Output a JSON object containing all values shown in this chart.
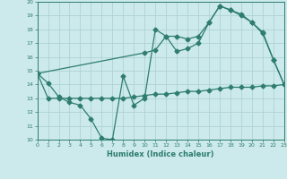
{
  "line1_x": [
    0,
    1,
    2,
    3,
    4,
    5,
    6,
    7,
    8,
    9,
    10,
    11,
    12,
    13,
    14,
    15,
    16,
    17,
    18,
    19,
    20,
    21,
    22,
    23
  ],
  "line1_y": [
    14.8,
    14.1,
    13.1,
    12.7,
    12.5,
    11.5,
    10.1,
    10.0,
    14.6,
    12.5,
    13.0,
    18.0,
    17.5,
    17.5,
    17.3,
    17.5,
    18.5,
    19.7,
    19.4,
    19.0,
    18.5,
    17.8,
    15.8,
    14.0
  ],
  "line2_x": [
    0,
    10,
    11,
    12,
    13,
    14,
    15,
    16,
    17,
    18,
    19,
    20,
    21,
    22,
    23
  ],
  "line2_y": [
    14.8,
    16.3,
    16.5,
    17.5,
    16.4,
    16.6,
    17.0,
    18.5,
    19.7,
    19.4,
    19.1,
    18.5,
    17.7,
    15.8,
    14.0
  ],
  "line3_x": [
    0,
    1,
    2,
    3,
    4,
    5,
    6,
    7,
    8,
    9,
    10,
    11,
    12,
    13,
    14,
    15,
    16,
    17,
    18,
    19,
    20,
    21,
    22,
    23
  ],
  "line3_y": [
    14.8,
    13.0,
    13.0,
    13.0,
    13.0,
    13.0,
    13.0,
    13.0,
    13.0,
    13.1,
    13.2,
    13.3,
    13.3,
    13.4,
    13.5,
    13.5,
    13.6,
    13.7,
    13.8,
    13.8,
    13.8,
    13.9,
    13.9,
    14.0
  ],
  "color": "#2e7d6e",
  "bg_color": "#cce9eb",
  "grid_color": "#aacfd2",
  "xlabel": "Humidex (Indice chaleur)",
  "xlim": [
    0,
    23
  ],
  "ylim": [
    10,
    20
  ],
  "xticks": [
    0,
    1,
    2,
    3,
    4,
    5,
    6,
    7,
    8,
    9,
    10,
    11,
    12,
    13,
    14,
    15,
    16,
    17,
    18,
    19,
    20,
    21,
    22,
    23
  ],
  "yticks": [
    10,
    11,
    12,
    13,
    14,
    15,
    16,
    17,
    18,
    19,
    20
  ],
  "marker": "D",
  "markersize": 2.5,
  "linewidth": 0.9
}
